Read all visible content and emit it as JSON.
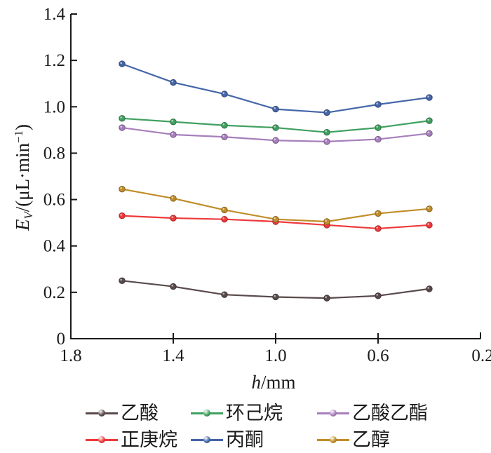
{
  "chart_data": {
    "type": "line",
    "title": "",
    "x": [
      1.6,
      1.4,
      1.2,
      1.0,
      0.8,
      0.6,
      0.4
    ],
    "series": [
      {
        "name": "乙酸",
        "color": "#594a4c",
        "values": [
          0.25,
          0.225,
          0.19,
          0.18,
          0.175,
          0.185,
          0.215
        ]
      },
      {
        "name": "正庚烷",
        "color": "#ee393b",
        "values": [
          0.53,
          0.52,
          0.515,
          0.505,
          0.49,
          0.475,
          0.49
        ]
      },
      {
        "name": "环己烷",
        "color": "#3fa05f",
        "values": [
          0.95,
          0.935,
          0.92,
          0.91,
          0.89,
          0.91,
          0.94
        ]
      },
      {
        "name": "丙酮",
        "color": "#4566a8",
        "values": [
          1.185,
          1.105,
          1.055,
          0.99,
          0.975,
          1.01,
          1.04
        ]
      },
      {
        "name": "乙酸乙酯",
        "color": "#a77fbc",
        "values": [
          0.91,
          0.88,
          0.87,
          0.855,
          0.85,
          0.86,
          0.885
        ]
      },
      {
        "name": "乙醇",
        "color": "#c08d28",
        "values": [
          0.645,
          0.605,
          0.555,
          0.515,
          0.505,
          0.54,
          0.56
        ]
      }
    ],
    "xlabel": "h/mm",
    "ylabel": "EV/(μL·min−1)",
    "xlim": [
      1.8,
      0.2
    ],
    "x_reversed": true,
    "ylim": [
      0,
      1.4
    ],
    "x_ticks": [
      1.8,
      1.4,
      1.0,
      0.6,
      0.2
    ],
    "x_tick_labels": [
      "1.8",
      "1.4",
      "1.0",
      "0.6",
      "0.2"
    ],
    "y_ticks": [
      0,
      0.2,
      0.4,
      0.6,
      0.8,
      1.0,
      1.2,
      1.4
    ],
    "y_tick_labels": [
      "0",
      "0.2",
      "0.4",
      "0.6",
      "0.8",
      "1.0",
      "1.2",
      "1.4"
    ],
    "grid": false,
    "legend_position": "below",
    "legend_order": [
      "乙酸",
      "环己烷",
      "乙酸乙酯",
      "正庚烷",
      "丙酮",
      "乙醇"
    ],
    "axis_color": "#1a1a1a",
    "marker_style": "ball"
  },
  "labels": {
    "y": {
      "sym": "E",
      "sub": "V",
      "mid": "/(μL·min",
      "sup": "−1",
      "end": ")"
    },
    "x": {
      "sym": "h",
      "rest": "/mm"
    }
  }
}
